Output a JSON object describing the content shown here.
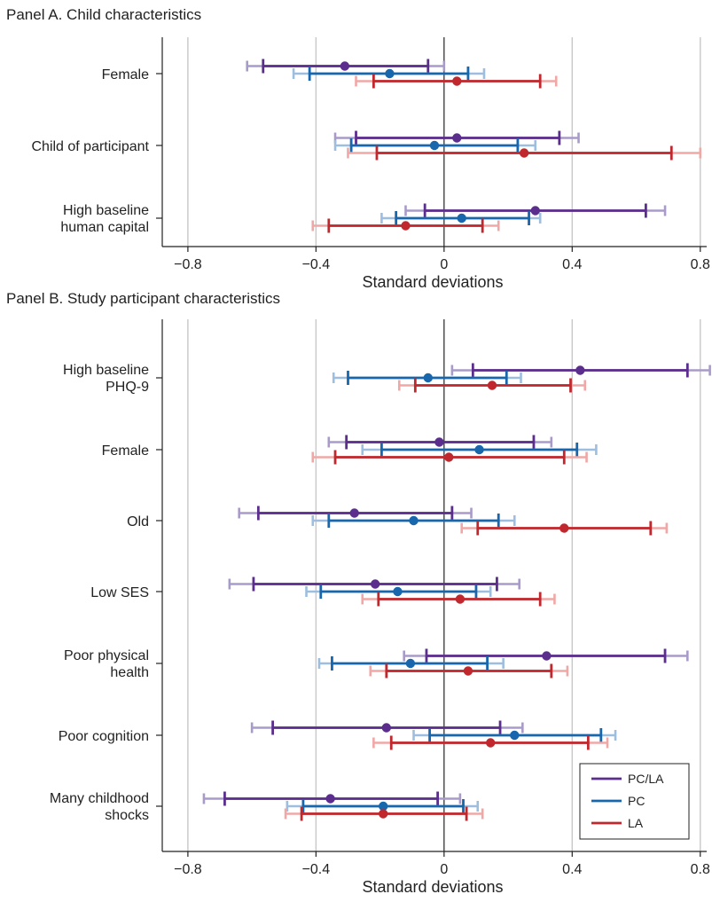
{
  "colors": {
    "PC/LA": {
      "dark": "#5b2d8c",
      "light": "#a99bc9"
    },
    "PC": {
      "dark": "#1866ab",
      "light": "#9ebedf"
    },
    "LA": {
      "dark": "#c0282e",
      "light": "#f0a8a6"
    },
    "grid": "#c8c8c8",
    "axis": "#222222"
  },
  "legend": {
    "placement": "bottom-right",
    "entries": [
      "PC/LA",
      "PC",
      "LA"
    ]
  },
  "chart_data": [
    {
      "type": "errorbar",
      "title": "Panel A. Child characteristics",
      "xlabel": "Standard deviations",
      "xlim": [
        -0.88,
        0.82
      ],
      "xticks": [
        -0.8,
        -0.4,
        0,
        0.4,
        0.8
      ],
      "xtick_labels": [
        "−0.8",
        "−0.4",
        "0",
        "0.4",
        "0.8"
      ],
      "grid": true,
      "categories": [
        {
          "label": [
            "Female"
          ],
          "series": [
            {
              "name": "PC/LA",
              "point": -0.31,
              "ci_inner": [
                -0.565,
                -0.05
              ],
              "ci_outer": [
                -0.615,
                0.0
              ]
            },
            {
              "name": "PC",
              "point": -0.17,
              "ci_inner": [
                -0.42,
                0.075
              ],
              "ci_outer": [
                -0.47,
                0.125
              ]
            },
            {
              "name": "LA",
              "point": 0.04,
              "ci_inner": [
                -0.22,
                0.3
              ],
              "ci_outer": [
                -0.275,
                0.35
              ]
            }
          ]
        },
        {
          "label": [
            "Child of participant"
          ],
          "series": [
            {
              "name": "PC/LA",
              "point": 0.04,
              "ci_inner": [
                -0.275,
                0.36
              ],
              "ci_outer": [
                -0.34,
                0.42
              ]
            },
            {
              "name": "PC",
              "point": -0.03,
              "ci_inner": [
                -0.29,
                0.23
              ],
              "ci_outer": [
                -0.34,
                0.285
              ]
            },
            {
              "name": "LA",
              "point": 0.25,
              "ci_inner": [
                -0.21,
                0.71
              ],
              "ci_outer": [
                -0.3,
                0.8
              ]
            }
          ]
        },
        {
          "label": [
            "High baseline",
            "human capital"
          ],
          "series": [
            {
              "name": "PC/LA",
              "point": 0.285,
              "ci_inner": [
                -0.06,
                0.63
              ],
              "ci_outer": [
                -0.12,
                0.69
              ]
            },
            {
              "name": "PC",
              "point": 0.055,
              "ci_inner": [
                -0.15,
                0.265
              ],
              "ci_outer": [
                -0.195,
                0.3
              ]
            },
            {
              "name": "LA",
              "point": -0.12,
              "ci_inner": [
                -0.36,
                0.12
              ],
              "ci_outer": [
                -0.41,
                0.17
              ]
            }
          ]
        }
      ]
    },
    {
      "type": "errorbar",
      "title": "Panel B. Study participant characteristics",
      "xlabel": "Standard deviations",
      "xlim": [
        -0.88,
        0.82
      ],
      "xticks": [
        -0.8,
        -0.4,
        0,
        0.4,
        0.8
      ],
      "xtick_labels": [
        "−0.8",
        "−0.4",
        "0",
        "0.4",
        "0.8"
      ],
      "grid": true,
      "categories": [
        {
          "label": [
            "High baseline",
            "PHQ-9"
          ],
          "series": [
            {
              "name": "PC/LA",
              "point": 0.425,
              "ci_inner": [
                0.09,
                0.76
              ],
              "ci_outer": [
                0.025,
                0.83
              ]
            },
            {
              "name": "PC",
              "point": -0.05,
              "ci_inner": [
                -0.3,
                0.195
              ],
              "ci_outer": [
                -0.345,
                0.24
              ]
            },
            {
              "name": "LA",
              "point": 0.15,
              "ci_inner": [
                -0.09,
                0.395
              ],
              "ci_outer": [
                -0.14,
                0.44
              ]
            }
          ]
        },
        {
          "label": [
            "Female"
          ],
          "series": [
            {
              "name": "PC/LA",
              "point": -0.015,
              "ci_inner": [
                -0.305,
                0.28
              ],
              "ci_outer": [
                -0.36,
                0.335
              ]
            },
            {
              "name": "PC",
              "point": 0.11,
              "ci_inner": [
                -0.195,
                0.415
              ],
              "ci_outer": [
                -0.255,
                0.475
              ]
            },
            {
              "name": "LA",
              "point": 0.015,
              "ci_inner": [
                -0.34,
                0.375
              ],
              "ci_outer": [
                -0.41,
                0.445
              ]
            }
          ]
        },
        {
          "label": [
            "Old"
          ],
          "series": [
            {
              "name": "PC/LA",
              "point": -0.28,
              "ci_inner": [
                -0.58,
                0.025
              ],
              "ci_outer": [
                -0.64,
                0.085
              ]
            },
            {
              "name": "PC",
              "point": -0.095,
              "ci_inner": [
                -0.36,
                0.17
              ],
              "ci_outer": [
                -0.41,
                0.22
              ]
            },
            {
              "name": "LA",
              "point": 0.375,
              "ci_inner": [
                0.105,
                0.645
              ],
              "ci_outer": [
                0.055,
                0.695
              ]
            }
          ]
        },
        {
          "label": [
            "Low SES"
          ],
          "series": [
            {
              "name": "PC/LA",
              "point": -0.215,
              "ci_inner": [
                -0.595,
                0.165
              ],
              "ci_outer": [
                -0.67,
                0.235
              ]
            },
            {
              "name": "PC",
              "point": -0.145,
              "ci_inner": [
                -0.385,
                0.1
              ],
              "ci_outer": [
                -0.43,
                0.145
              ]
            },
            {
              "name": "LA",
              "point": 0.05,
              "ci_inner": [
                -0.205,
                0.3
              ],
              "ci_outer": [
                -0.255,
                0.345
              ]
            }
          ]
        },
        {
          "label": [
            "Poor physical",
            "health"
          ],
          "series": [
            {
              "name": "PC/LA",
              "point": 0.32,
              "ci_inner": [
                -0.055,
                0.69
              ],
              "ci_outer": [
                -0.125,
                0.76
              ]
            },
            {
              "name": "PC",
              "point": -0.105,
              "ci_inner": [
                -0.35,
                0.135
              ],
              "ci_outer": [
                -0.39,
                0.185
              ]
            },
            {
              "name": "LA",
              "point": 0.075,
              "ci_inner": [
                -0.18,
                0.335
              ],
              "ci_outer": [
                -0.23,
                0.385
              ]
            }
          ]
        },
        {
          "label": [
            "Poor cognition"
          ],
          "series": [
            {
              "name": "PC/LA",
              "point": -0.18,
              "ci_inner": [
                -0.535,
                0.175
              ],
              "ci_outer": [
                -0.6,
                0.245
              ]
            },
            {
              "name": "PC",
              "point": 0.22,
              "ci_inner": [
                -0.045,
                0.49
              ],
              "ci_outer": [
                -0.095,
                0.535
              ]
            },
            {
              "name": "LA",
              "point": 0.145,
              "ci_inner": [
                -0.165,
                0.45
              ],
              "ci_outer": [
                -0.22,
                0.51
              ]
            }
          ]
        },
        {
          "label": [
            "Many childhood",
            "shocks"
          ],
          "series": [
            {
              "name": "PC/LA",
              "point": -0.355,
              "ci_inner": [
                -0.685,
                -0.02
              ],
              "ci_outer": [
                -0.75,
                0.05
              ]
            },
            {
              "name": "PC",
              "point": -0.19,
              "ci_inner": [
                -0.44,
                0.06
              ],
              "ci_outer": [
                -0.49,
                0.105
              ]
            },
            {
              "name": "LA",
              "point": -0.19,
              "ci_inner": [
                -0.445,
                0.07
              ],
              "ci_outer": [
                -0.495,
                0.12
              ]
            }
          ]
        }
      ]
    }
  ]
}
